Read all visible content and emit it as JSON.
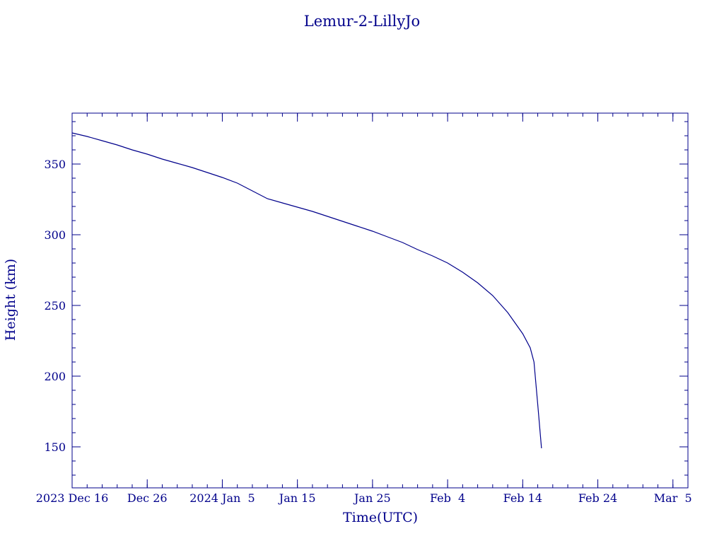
{
  "colors": {
    "foreground": "#00008b",
    "background": "#ffffff"
  },
  "chart_data": {
    "type": "line",
    "title": "Lemur-2-LillyJo",
    "xlabel": "Time(UTC)",
    "ylabel": "Height (km)",
    "x_unit": "date (UTC)",
    "xlim": [
      "2023-12-16",
      "2024-03-07"
    ],
    "ylim": [
      121,
      386
    ],
    "grid": false,
    "legend": "none",
    "x_ticks": [
      {
        "date": "2023-12-16",
        "label": "2023 Dec 16"
      },
      {
        "date": "2023-12-26",
        "label": "Dec 26"
      },
      {
        "date": "2024-01-05",
        "label": "2024 Jan  5"
      },
      {
        "date": "2024-01-15",
        "label": "Jan 15"
      },
      {
        "date": "2024-01-25",
        "label": "Jan 25"
      },
      {
        "date": "2024-02-04",
        "label": "Feb  4"
      },
      {
        "date": "2024-02-14",
        "label": "Feb 14"
      },
      {
        "date": "2024-02-24",
        "label": "Feb 24"
      },
      {
        "date": "2024-03-05",
        "label": "Mar  5"
      }
    ],
    "y_ticks": [
      150,
      200,
      250,
      300,
      350
    ],
    "y_minor_step": 10,
    "x_minor_step_days": 2,
    "series": [
      {
        "color": "#00008b",
        "points": [
          [
            "2023-12-16",
            372
          ],
          [
            "2023-12-18",
            369.5
          ],
          [
            "2023-12-20",
            366.5
          ],
          [
            "2023-12-22",
            363.5
          ],
          [
            "2023-12-24",
            360
          ],
          [
            "2023-12-26",
            357
          ],
          [
            "2023-12-28",
            353.5
          ],
          [
            "2023-12-30",
            350.5
          ],
          [
            "2024-01-01",
            347.5
          ],
          [
            "2024-01-03",
            344
          ],
          [
            "2024-01-05",
            340.5
          ],
          [
            "2024-01-07",
            336.5
          ],
          [
            "2024-01-09",
            331
          ],
          [
            "2024-01-11",
            325.5
          ],
          [
            "2024-01-13",
            322.5
          ],
          [
            "2024-01-15",
            319.5
          ],
          [
            "2024-01-17",
            316.5
          ],
          [
            "2024-01-19",
            313
          ],
          [
            "2024-01-21",
            309.5
          ],
          [
            "2024-01-23",
            306
          ],
          [
            "2024-01-25",
            302.5
          ],
          [
            "2024-01-27",
            298.5
          ],
          [
            "2024-01-29",
            294.5
          ],
          [
            "2024-01-31",
            289.5
          ],
          [
            "2024-02-02",
            285
          ],
          [
            "2024-02-04",
            280
          ],
          [
            "2024-02-06",
            273.5
          ],
          [
            "2024-02-08",
            266
          ],
          [
            "2024-02-10",
            257
          ],
          [
            "2024-02-12",
            245
          ],
          [
            "2024-02-14",
            230
          ],
          [
            "2024-02-15",
            220
          ],
          [
            "2024-02-15 12:00",
            210
          ],
          [
            "2024-02-16",
            180
          ],
          [
            "2024-02-16 12:00",
            149
          ]
        ]
      }
    ]
  }
}
